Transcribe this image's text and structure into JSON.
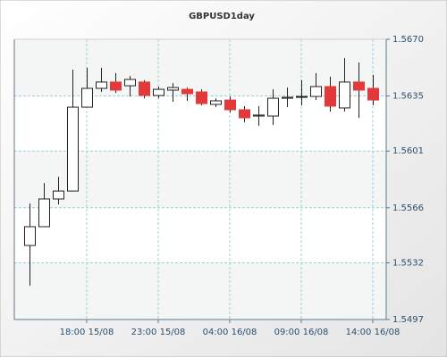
{
  "chart_data": {
    "type": "candlestick",
    "title": "GBPUSD1day",
    "categories": [
      null,
      null,
      null,
      null,
      "18:00 15/08",
      null,
      null,
      null,
      null,
      "23:00 15/08",
      null,
      null,
      null,
      null,
      "04:00 16/08",
      null,
      null,
      null,
      null,
      "09:00 16/08",
      null,
      null,
      null,
      null,
      "14:00 16/08"
    ],
    "open": [
      1.55427,
      1.55543,
      1.55714,
      1.55763,
      1.56281,
      1.56397,
      1.56436,
      1.56413,
      1.56436,
      1.56353,
      1.56386,
      1.56391,
      1.56375,
      1.56298,
      1.56325,
      1.56265,
      1.56226,
      1.56226,
      1.56336,
      1.56342,
      1.56347,
      1.56408,
      1.56276,
      1.56436,
      1.56397
    ],
    "high": [
      1.55686,
      1.55813,
      1.55851,
      1.56513,
      1.56524,
      1.56524,
      1.56491,
      1.56474,
      1.56447,
      1.56408,
      1.5643,
      1.56402,
      1.56391,
      1.56336,
      1.56347,
      1.56287,
      1.56287,
      1.56391,
      1.56402,
      1.56447,
      1.56491,
      1.56469,
      1.56584,
      1.56557,
      1.5648
    ],
    "low": [
      1.55179,
      1.55543,
      1.55681,
      1.55763,
      1.56281,
      1.56375,
      1.56369,
      1.56347,
      1.56336,
      1.56336,
      1.56314,
      1.5632,
      1.56292,
      1.56281,
      1.56248,
      1.56188,
      1.56166,
      1.56171,
      1.56281,
      1.56292,
      1.56325,
      1.56254,
      1.56254,
      1.56215,
      1.56292
    ],
    "close": [
      1.55543,
      1.55714,
      1.55763,
      1.56281,
      1.56397,
      1.56436,
      1.56386,
      1.56452,
      1.56353,
      1.56391,
      1.56402,
      1.56364,
      1.56303,
      1.5632,
      1.56265,
      1.56215,
      1.56232,
      1.56336,
      1.56342,
      1.56347,
      1.56408,
      1.56287,
      1.56436,
      1.56386,
      1.56325
    ],
    "up_color": "#ffffff",
    "down_color": "#e23a3a",
    "ylim": [
      1.5497,
      1.567
    ],
    "yticks": [
      {
        "value": 1.5497,
        "label": "1.5497"
      },
      {
        "value": 1.5532,
        "label": "1.5532"
      },
      {
        "value": 1.5566,
        "label": "1.5566"
      },
      {
        "value": 1.5601,
        "label": "1.5601"
      },
      {
        "value": 1.5635,
        "label": "1.5635"
      },
      {
        "value": 1.567,
        "label": "1.5670"
      }
    ],
    "grid": true
  }
}
